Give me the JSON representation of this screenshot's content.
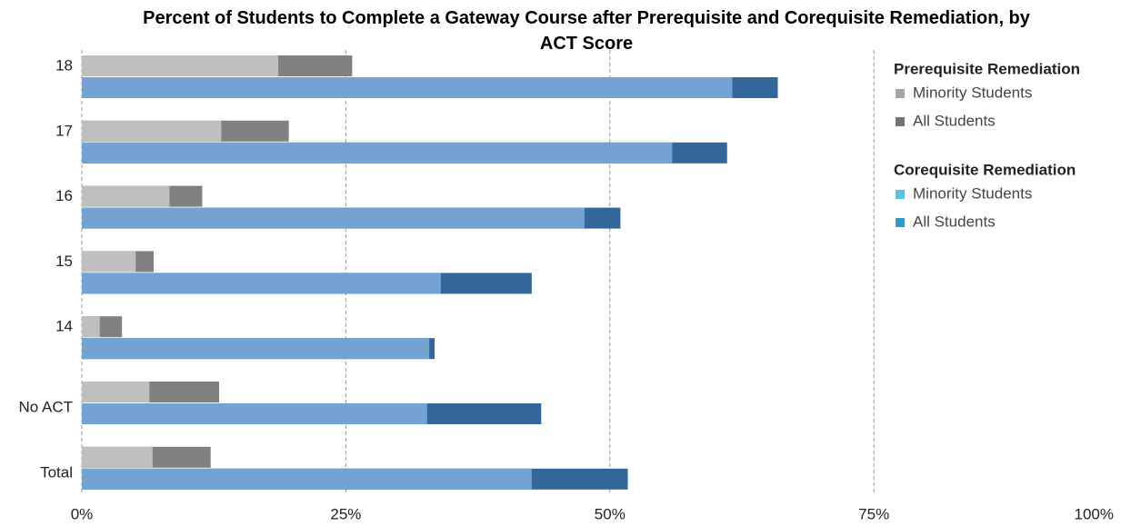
{
  "chart_data": {
    "type": "bar",
    "orientation": "horizontal",
    "title": "Percent of Students to Complete a Gateway Course after Prerequisite and Corequisite Remediation, by ACT Score",
    "categories": [
      "18",
      "17",
      "16",
      "15",
      "14",
      "No ACT",
      "Total"
    ],
    "groups": [
      {
        "name": "Prerequisite Remediation",
        "series": [
          {
            "name": "Minority Students",
            "color": "#bfbfbf",
            "legend_color": "#a6a6a6",
            "values": [
              18.6,
              13.2,
              8.3,
              5.1,
              1.7,
              6.4,
              6.7
            ]
          },
          {
            "name": "All Students",
            "color": "#808080",
            "legend_color": "#737373",
            "values": [
              25.6,
              19.6,
              11.4,
              6.8,
              3.8,
              13.0,
              12.2
            ]
          }
        ]
      },
      {
        "name": "Corequisite Remediation",
        "series": [
          {
            "name": "Minority Students",
            "color": "#74a2d2",
            "legend_color": "#5bc0e6",
            "values": [
              61.6,
              55.9,
              47.6,
              34.0,
              32.9,
              32.7,
              42.6
            ]
          },
          {
            "name": "All Students",
            "color": "#336699",
            "legend_color": "#2e9cc4",
            "values": [
              65.9,
              61.1,
              51.0,
              42.6,
              33.4,
              43.5,
              51.7
            ]
          }
        ]
      }
    ],
    "xlim": [
      0,
      100
    ],
    "xticks": [
      {
        "value": 0,
        "label": "0%"
      },
      {
        "value": 25,
        "label": "25%"
      },
      {
        "value": 50,
        "label": "50%"
      },
      {
        "value": 75,
        "label": "75%"
      },
      {
        "value": 100,
        "label": "100%"
      }
    ],
    "grid": true,
    "legend": "right"
  }
}
